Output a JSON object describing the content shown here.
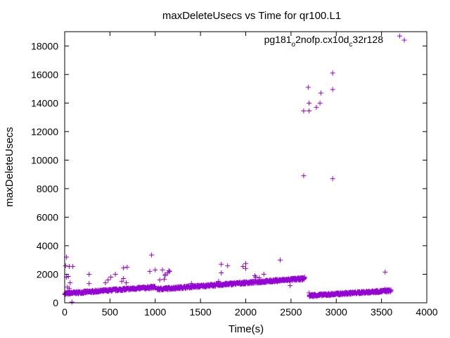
{
  "chart_data": {
    "type": "scatter",
    "title": "maxDeleteUsecs vs Time for qr100.L1",
    "xlabel": "Time(s)",
    "ylabel": "maxDeleteUsecs",
    "xlim": [
      0,
      4000
    ],
    "ylim": [
      0,
      19000
    ],
    "x_ticks": [
      0,
      500,
      1000,
      1500,
      2000,
      2500,
      3000,
      3500,
      4000
    ],
    "y_ticks": [
      0,
      2000,
      4000,
      6000,
      8000,
      10000,
      12000,
      14000,
      16000,
      18000
    ],
    "grid": false,
    "legend_position": "top-right",
    "legend": {
      "parts": [
        "pg181",
        "o",
        "2nofp.cx10d",
        "c",
        "32r128"
      ]
    },
    "marker": "+",
    "color": "#9400d3",
    "trend_segments": [
      {
        "x": [
          0,
          1000
        ],
        "y": [
          650,
          1100
        ]
      },
      {
        "x": [
          1020,
          2650
        ],
        "y": [
          950,
          1700
        ]
      },
      {
        "x": [
          2700,
          3600
        ],
        "y": [
          500,
          850
        ]
      }
    ],
    "series": [
      {
        "values": [
          [
            3700,
            18700
          ],
          [
            2960,
            16100
          ],
          [
            2690,
            15100
          ],
          [
            2960,
            14950
          ],
          [
            2830,
            14700
          ],
          [
            2700,
            14000
          ],
          [
            2820,
            14000
          ],
          [
            2780,
            13700
          ],
          [
            2640,
            13450
          ],
          [
            2700,
            13450
          ],
          [
            2640,
            8900
          ],
          [
            2960,
            8700
          ],
          [
            20,
            3200
          ],
          [
            960,
            3350
          ],
          [
            2380,
            3000
          ],
          [
            1730,
            2700
          ],
          [
            1800,
            2600
          ],
          [
            2000,
            2750
          ],
          [
            1970,
            2550
          ],
          [
            650,
            2450
          ],
          [
            690,
            2500
          ],
          [
            1000,
            2300
          ],
          [
            1080,
            2300
          ],
          [
            1150,
            2250
          ],
          [
            1160,
            2200
          ],
          [
            1140,
            2100
          ],
          [
            940,
            2200
          ],
          [
            1730,
            2100
          ],
          [
            2000,
            2400
          ],
          [
            3540,
            2150
          ],
          [
            10,
            2600
          ],
          [
            50,
            2550
          ],
          [
            90,
            2550
          ],
          [
            20,
            1800
          ],
          [
            40,
            1850
          ],
          [
            270,
            2000
          ],
          [
            560,
            2000
          ],
          [
            510,
            1800
          ],
          [
            480,
            1600
          ],
          [
            450,
            1400
          ],
          [
            630,
            1500
          ],
          [
            650,
            1700
          ],
          [
            1050,
            1600
          ],
          [
            1100,
            1650
          ],
          [
            1110,
            1900
          ],
          [
            1110,
            2000
          ],
          [
            2100,
            1900
          ],
          [
            2200,
            2000
          ],
          [
            2110,
            1800
          ],
          [
            2150,
            1750
          ],
          [
            2490,
            1200
          ],
          [
            2650,
            1800
          ],
          [
            60,
            1400
          ],
          [
            270,
            1350
          ],
          [
            40,
            700
          ],
          [
            80,
            50
          ],
          [
            2700,
            700
          ],
          [
            2760,
            600
          ],
          [
            3540,
            950
          ],
          [
            30,
            1100
          ],
          [
            50,
            1000
          ],
          [
            680,
            1400
          ],
          [
            1400,
            1350
          ],
          [
            1700,
            1500
          ]
        ]
      }
    ]
  }
}
